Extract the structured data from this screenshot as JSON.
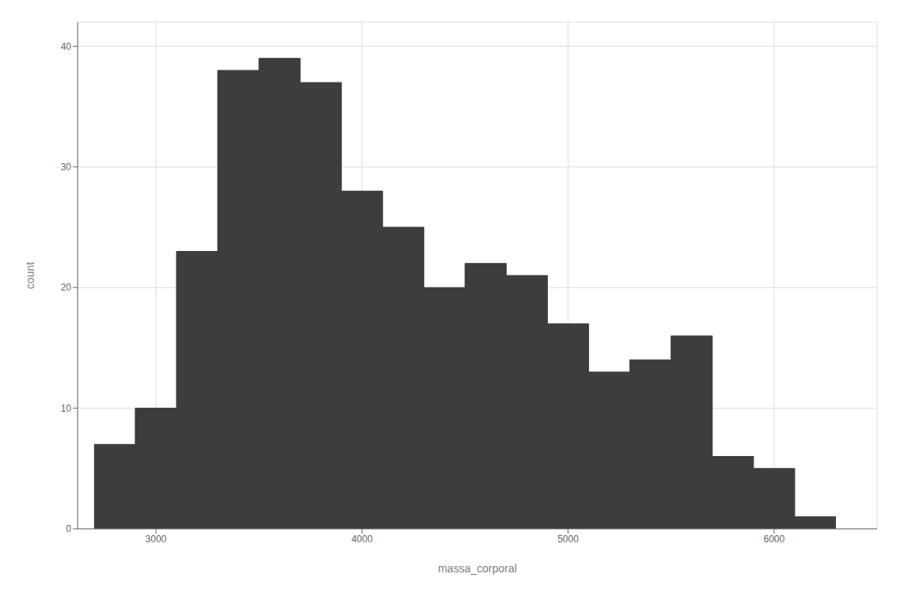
{
  "chart_data": {
    "type": "histogram",
    "bins": [
      2700,
      2900,
      3100,
      3300,
      3500,
      3700,
      3900,
      4100,
      4300,
      4500,
      4700,
      4900,
      5100,
      5300,
      5500,
      5700,
      5900,
      6100,
      6300
    ],
    "values": [
      7,
      10,
      23,
      38,
      39,
      37,
      28,
      25,
      20,
      22,
      21,
      17,
      13,
      14,
      16,
      6,
      5,
      1
    ],
    "color": "#3d3d3d",
    "xlabel": "massa_corporal",
    "ylabel": "count",
    "xlim": [
      2620,
      6500
    ],
    "ylim": [
      0,
      42
    ],
    "xticks": [
      3000,
      4000,
      5000,
      6000
    ],
    "yticks": [
      0,
      10,
      20,
      30,
      40
    ],
    "grid": true
  }
}
